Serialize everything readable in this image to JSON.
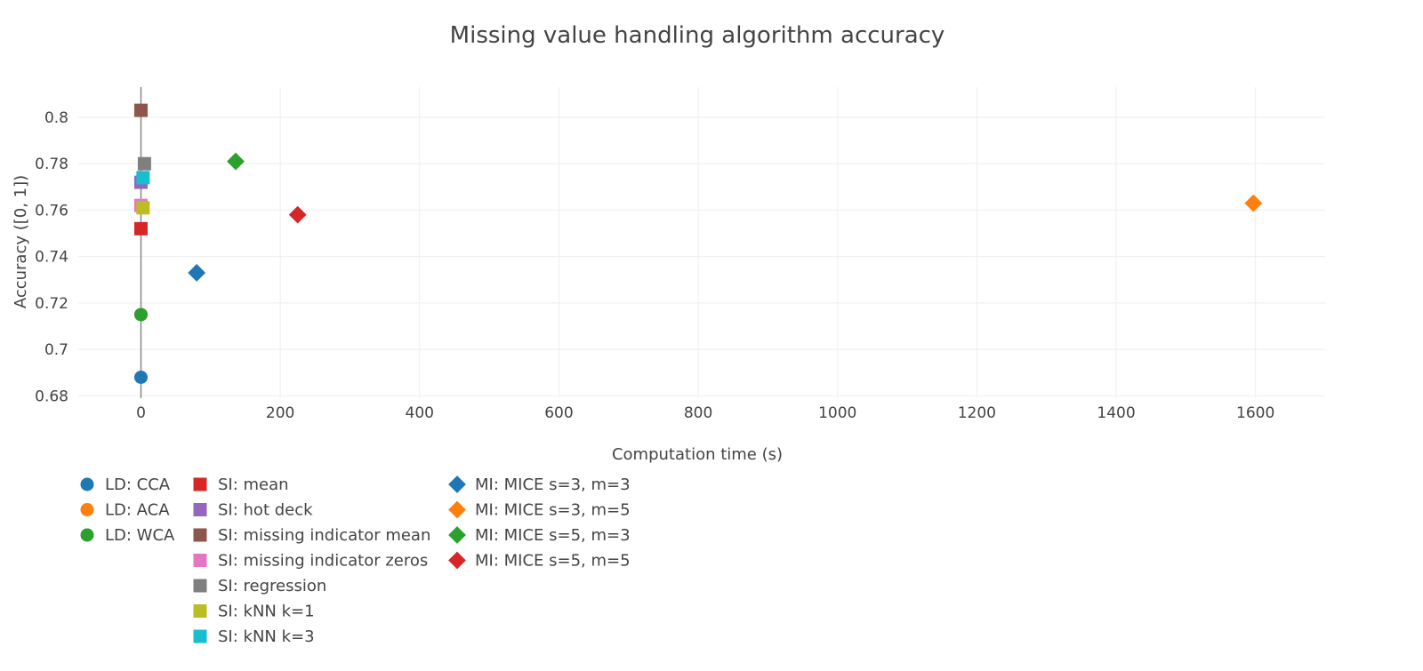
{
  "chart_data": {
    "type": "scatter",
    "title": "Missing value handling algorithm accuracy",
    "xlabel": "Computation time (s)",
    "ylabel": "Accuracy ([0, 1])",
    "xlim": [
      -90,
      1700
    ],
    "ylim": [
      0.679,
      0.813
    ],
    "xticks": [
      0,
      200,
      400,
      600,
      800,
      1000,
      1200,
      1400,
      1600
    ],
    "xtick_labels": [
      "0",
      "200",
      "400",
      "600",
      "800",
      "1000",
      "1200",
      "1400",
      "1600"
    ],
    "yticks": [
      0.68,
      0.7,
      0.72,
      0.74,
      0.76,
      0.78,
      0.8
    ],
    "ytick_labels": [
      "0.68",
      "0.7",
      "0.72",
      "0.74",
      "0.76",
      "0.78",
      "0.8"
    ],
    "grid": true,
    "legend_position": "bottom-left",
    "series": [
      {
        "name": "LD: CCA",
        "symbol": "circle",
        "color": "#1f77b4",
        "points": [
          [
            0,
            0.688
          ]
        ]
      },
      {
        "name": "LD: ACA",
        "symbol": "circle",
        "color": "#ff7f0e",
        "points": [
          [
            0,
            0.715
          ]
        ]
      },
      {
        "name": "LD: WCA",
        "symbol": "circle",
        "color": "#2ca02c",
        "points": [
          [
            0,
            0.715
          ]
        ]
      },
      {
        "name": "SI: mean",
        "symbol": "square",
        "color": "#d62728",
        "points": [
          [
            0,
            0.752
          ]
        ]
      },
      {
        "name": "SI: hot deck",
        "symbol": "square",
        "color": "#9467bd",
        "points": [
          [
            0,
            0.772
          ]
        ]
      },
      {
        "name": "SI: missing indicator mean",
        "symbol": "square",
        "color": "#8c564b",
        "points": [
          [
            0,
            0.803
          ]
        ]
      },
      {
        "name": "SI: missing indicator zeros",
        "symbol": "square",
        "color": "#e377c2",
        "points": [
          [
            0,
            0.762
          ]
        ]
      },
      {
        "name": "SI: regression",
        "symbol": "square",
        "color": "#7f7f7f",
        "points": [
          [
            5,
            0.78
          ]
        ]
      },
      {
        "name": "SI: kNN k=1",
        "symbol": "square",
        "color": "#bcbd22",
        "points": [
          [
            3,
            0.761
          ]
        ]
      },
      {
        "name": "SI: kNN k=3",
        "symbol": "square",
        "color": "#17becf",
        "points": [
          [
            3,
            0.774
          ]
        ]
      },
      {
        "name": "MI: MICE s=3, m=3",
        "symbol": "diamond",
        "color": "#1f77b4",
        "points": [
          [
            80,
            0.733
          ]
        ]
      },
      {
        "name": "MI: MICE s=3, m=5",
        "symbol": "diamond",
        "color": "#ff7f0e",
        "points": [
          [
            1597,
            0.763
          ]
        ]
      },
      {
        "name": "MI: MICE s=5, m=3",
        "symbol": "diamond",
        "color": "#2ca02c",
        "points": [
          [
            136,
            0.781
          ]
        ]
      },
      {
        "name": "MI: MICE s=5, m=5",
        "symbol": "diamond",
        "color": "#d62728",
        "points": [
          [
            225,
            0.758
          ]
        ]
      }
    ]
  }
}
